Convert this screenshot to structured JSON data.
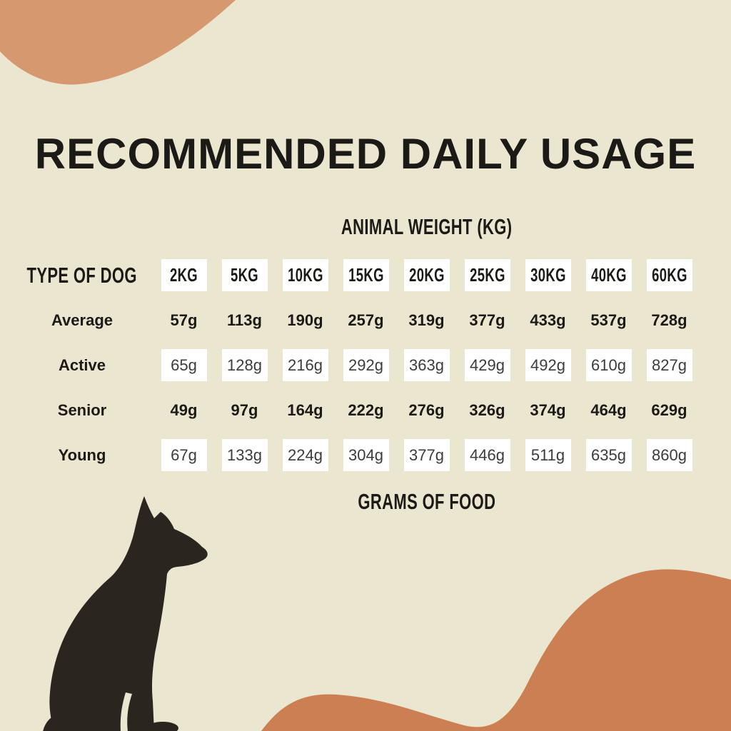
{
  "title": "RECOMMENDED DAILY USAGE",
  "chart_data": {
    "type": "table",
    "title": "RECOMMENDED DAILY USAGE",
    "column_group_label": "ANIMAL WEIGHT (KG)",
    "row_group_label": "TYPE OF DOG",
    "footer_label": "GRAMS OF FOOD",
    "columns": [
      "2KG",
      "5KG",
      "10KG",
      "15KG",
      "20KG",
      "25KG",
      "30KG",
      "40KG",
      "60KG"
    ],
    "rows": [
      {
        "label": "Average",
        "emphasis": "bold",
        "values": [
          "57g",
          "113g",
          "190g",
          "257g",
          "319g",
          "377g",
          "433g",
          "537g",
          "728g"
        ]
      },
      {
        "label": "Active",
        "emphasis": "boxed",
        "values": [
          "65g",
          "128g",
          "216g",
          "292g",
          "363g",
          "429g",
          "492g",
          "610g",
          "827g"
        ]
      },
      {
        "label": "Senior",
        "emphasis": "bold",
        "values": [
          "49g",
          "97g",
          "164g",
          "222g",
          "276g",
          "326g",
          "374g",
          "464g",
          "629g"
        ]
      },
      {
        "label": "Young",
        "emphasis": "boxed",
        "values": [
          "67g",
          "133g",
          "224g",
          "304g",
          "377g",
          "446g",
          "511g",
          "635g",
          "860g"
        ]
      }
    ]
  },
  "colors": {
    "background": "#ebe6d0",
    "text_dark": "#1c1a17",
    "text_muted": "#3c3c3c",
    "cell_box": "#ffffff",
    "blob_top": "#d6986f",
    "blob_bottom": "#cc7f53",
    "dog": "#2a261f"
  },
  "decorations": {
    "dog_icon": "sitting-dog-silhouette",
    "blob_top_left": "organic-blob",
    "blob_bottom_right": "organic-blob"
  }
}
